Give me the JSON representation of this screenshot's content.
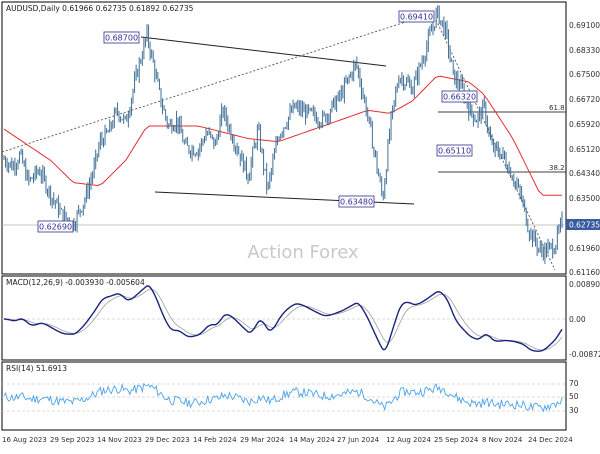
{
  "colors": {
    "price": "#3f6f96",
    "ma": "#e03030",
    "macd": "#1a237e",
    "signal": "#9e9e9e",
    "rsi": "#4ea3e8",
    "trend": "#202020",
    "label_border": "#2f2f8f",
    "label_text": "#2f2f8f",
    "current_bg": "#3a5aa0",
    "grid": "#d8d8d8",
    "axis_text": "#303030"
  },
  "main_panel": {
    "header": "AUDUSD,Daily  0.61966 0.62735 0.61892 0.62735",
    "watermark": "Action Forex",
    "current_price": "0.62735",
    "y_ticks": [
      "0.69100",
      "0.68330",
      "0.67500",
      "0.66720",
      "0.65920",
      "0.65120",
      "0.64340",
      "0.63500",
      "0.62735",
      "0.61960",
      "0.61160"
    ],
    "price_labels": [
      "0.68700",
      "0.69410",
      "0.62690",
      "0.63480",
      "0.66320",
      "0.65110"
    ],
    "fib_labels": [
      "61.8",
      "38.2"
    ]
  },
  "macd_panel": {
    "header": "MACD(12,26,9) -0.003930 -0.005604",
    "y_ticks": [
      "0.008901",
      "0.00",
      "-0.008729"
    ]
  },
  "rsi_panel": {
    "header": "RSI(14) 51.6913",
    "y_ticks": [
      "70",
      "50",
      "30"
    ]
  },
  "x_axis": {
    "labels": [
      "16 Aug 2023",
      "29 Sep 2023",
      "14 Nov 2023",
      "29 Dec 2023",
      "14 Feb 2024",
      "29 Mar 2024",
      "14 May 2024",
      "27 Jun 2024",
      "12 Aug 2024",
      "25 Sep 2024",
      "8 Nov 2024",
      "24 Dec 2024"
    ]
  },
  "chart_data": {
    "type": "line",
    "title": "AUDUSD,Daily",
    "ylim": [
      0.6116,
      0.6955
    ],
    "x": [
      "16 Aug 2023",
      "29 Sep 2023",
      "14 Nov 2023",
      "29 Dec 2023",
      "14 Feb 2024",
      "29 Mar 2024",
      "14 May 2024",
      "27 Jun 2024",
      "12 Aug 2024",
      "25 Sep 2024",
      "8 Nov 2024",
      "24 Dec 2024"
    ],
    "series": [
      {
        "name": "AUDUSD",
        "points": [
          [
            "16 Aug 2023",
            0.6475
          ],
          [
            "24 Aug 2023",
            0.6452
          ],
          [
            "31 Aug 2023",
            0.6488
          ],
          [
            "8 Sep 2023",
            0.6402
          ],
          [
            "18 Sep 2023",
            0.644
          ],
          [
            "29 Sep 2023",
            0.636
          ],
          [
            "9 Oct 2023",
            0.63
          ],
          [
            "20 Oct 2023",
            0.6269
          ],
          [
            "31 Oct 2023",
            0.635
          ],
          [
            "8 Nov 2023",
            0.644
          ],
          [
            "14 Nov 2023",
            0.653
          ],
          [
            "22 Nov 2023",
            0.656
          ],
          [
            "30 Nov 2023",
            0.663
          ],
          [
            "8 Dec 2023",
            0.659
          ],
          [
            "18 Dec 2023",
            0.674
          ],
          [
            "28 Dec 2023",
            0.687
          ],
          [
            "4 Jan 2024",
            0.676
          ],
          [
            "10 Jan 2024",
            0.666
          ],
          [
            "17 Jan 2024",
            0.658
          ],
          [
            "25 Jan 2024",
            0.66
          ],
          [
            "2 Feb 2024",
            0.651
          ],
          [
            "14 Feb 2024",
            0.6505
          ],
          [
            "22 Feb 2024",
            0.656
          ],
          [
            "1 Mar 2024",
            0.652
          ],
          [
            "8 Mar 2024",
            0.663
          ],
          [
            "18 Mar 2024",
            0.654
          ],
          [
            "25 Mar 2024",
            0.648
          ],
          [
            "1 Apr 2024",
            0.642
          ],
          [
            "10 Apr 2024",
            0.657
          ],
          [
            "19 Apr 2024",
            0.6375
          ],
          [
            "29 Apr 2024",
            0.655
          ],
          [
            "14 May 2024",
            0.664
          ],
          [
            "27 May 2024",
            0.662
          ],
          [
            "10 Jun 2024",
            0.66
          ],
          [
            "27 Jun 2024",
            0.668
          ],
          [
            "11 Jul 2024",
            0.678
          ],
          [
            "22 Jul 2024",
            0.661
          ],
          [
            "5 Aug 2024",
            0.6348
          ],
          [
            "12 Aug 2024",
            0.658
          ],
          [
            "20 Aug 2024",
            0.674
          ],
          [
            "2 Sep 2024",
            0.67
          ],
          [
            "12 Sep 2024",
            0.68
          ],
          [
            "25 Sep 2024",
            0.6941
          ],
          [
            "3 Oct 2024",
            0.688
          ],
          [
            "10 Oct 2024",
            0.674
          ],
          [
            "18 Oct 2024",
            0.67
          ],
          [
            "25 Oct 2024",
            0.6632
          ],
          [
            "1 Nov 2024",
            0.66
          ],
          [
            "8 Nov 2024",
            0.664
          ],
          [
            "15 Nov 2024",
            0.6511
          ],
          [
            "25 Nov 2024",
            0.649
          ],
          [
            "5 Dec 2024",
            0.642
          ],
          [
            "13 Dec 2024",
            0.635
          ],
          [
            "20 Dec 2024",
            0.625
          ],
          [
            "31 Dec 2024",
            0.618
          ],
          [
            "8 Jan 2025",
            0.619
          ],
          [
            "13 Jan 2025",
            0.62
          ],
          [
            "20 Jan 2025",
            0.6273
          ]
        ]
      },
      {
        "name": "MA",
        "points": [
          [
            "16 Aug 2023",
            0.657
          ],
          [
            "29 Sep 2023",
            0.647
          ],
          [
            "20 Oct 2023",
            0.64
          ],
          [
            "14 Nov 2023",
            0.639
          ],
          [
            "8 Dec 2023",
            0.647
          ],
          [
            "28 Dec 2023",
            0.658
          ],
          [
            "14 Feb 2024",
            0.658
          ],
          [
            "1 Apr 2024",
            0.654
          ],
          [
            "29 Apr 2024",
            0.653
          ],
          [
            "27 Jun 2024",
            0.66
          ],
          [
            "22 Jul 2024",
            0.663
          ],
          [
            "12 Aug 2024",
            0.662
          ],
          [
            "2 Sep 2024",
            0.666
          ],
          [
            "25 Sep 2024",
            0.674
          ],
          [
            "25 Oct 2024",
            0.672
          ],
          [
            "8 Nov 2024",
            0.668
          ],
          [
            "5 Dec 2024",
            0.654
          ],
          [
            "31 Dec 2024",
            0.636
          ]
        ]
      }
    ]
  }
}
